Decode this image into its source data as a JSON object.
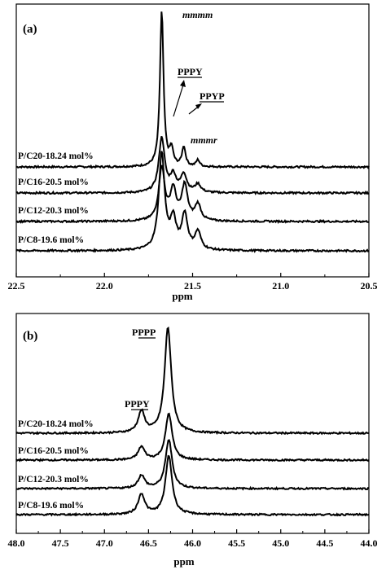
{
  "chart_data": [
    {
      "type": "line",
      "panel_label": "(a)",
      "xlabel": "ppm",
      "xlim": [
        22.5,
        20.5
      ],
      "x_reversed": true,
      "x_ticks": [
        "22.5",
        "22.0",
        "21.5",
        "21.0",
        "20.5"
      ],
      "x_tick_values": [
        22.5,
        22.0,
        21.5,
        21.0,
        20.5
      ],
      "series": [
        {
          "name": "P/C20-18.24 mol%",
          "peaks": [
            [
              21.675,
              191
            ],
            [
              21.62,
              20
            ],
            [
              21.55,
              24
            ],
            [
              21.47,
              8
            ]
          ]
        },
        {
          "name": "P/C16-20.5 mol%",
          "peaks": [
            [
              21.675,
              67
            ],
            [
              21.61,
              20
            ],
            [
              21.55,
              22
            ],
            [
              21.47,
              10
            ]
          ]
        },
        {
          "name": "P/C12-20.3 mol%",
          "peaks": [
            [
              21.675,
              65
            ],
            [
              21.61,
              37
            ],
            [
              21.545,
              43
            ],
            [
              21.47,
              20
            ]
          ]
        },
        {
          "name": "P/C8-19.6 mol%",
          "peaks": [
            [
              21.675,
              118
            ],
            [
              21.61,
              35
            ],
            [
              21.545,
              43
            ],
            [
              21.47,
              22
            ]
          ]
        }
      ],
      "annotations": [
        {
          "text": "mmmm",
          "x": 21.6,
          "style": "italic"
        },
        {
          "text": "PPPY",
          "x": 21.55,
          "underline": "PPP"
        },
        {
          "text": "PPYP",
          "x": 21.47,
          "underline": "PPY"
        },
        {
          "text": "mmmr",
          "x": 21.46,
          "style": "italic"
        }
      ]
    },
    {
      "type": "line",
      "panel_label": "(b)",
      "xlabel": "ppm",
      "xlim": [
        48.0,
        44.0
      ],
      "x_reversed": true,
      "x_ticks": [
        "48.0",
        "47.5",
        "47.0",
        "46.5",
        "46.0",
        "45.5",
        "45.0",
        "44.5",
        "44.0"
      ],
      "x_tick_values": [
        48.0,
        47.5,
        47.0,
        46.5,
        46.0,
        45.5,
        45.0,
        44.5,
        44.0
      ],
      "series": [
        {
          "name": "P/C20-18.24 mol%",
          "peaks": [
            [
              46.58,
              26
            ],
            [
              46.28,
              130
            ]
          ]
        },
        {
          "name": "P/C16-20.5 mol%",
          "peaks": [
            [
              46.58,
              16
            ],
            [
              46.27,
              57
            ]
          ]
        },
        {
          "name": "P/C12-20.3 mol%",
          "peaks": [
            [
              46.58,
              16
            ],
            [
              46.27,
              60
            ]
          ]
        },
        {
          "name": "P/C8-19.6 mol%",
          "peaks": [
            [
              46.58,
              25
            ],
            [
              46.27,
              72
            ]
          ]
        }
      ],
      "annotations": [
        {
          "text": "PPPP",
          "x": 46.4,
          "underline": "PPP"
        },
        {
          "text": "PPPY",
          "x": 46.7,
          "underline": "PPP"
        }
      ]
    }
  ]
}
